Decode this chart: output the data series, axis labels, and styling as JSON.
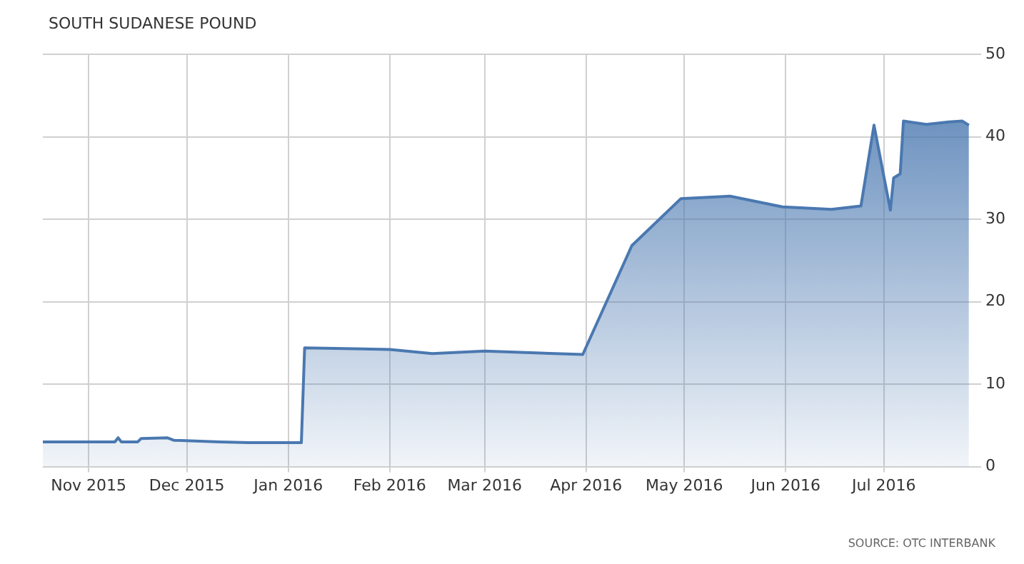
{
  "chart_data": {
    "type": "area",
    "title": "SOUTH SUDANESE POUND",
    "annotations": [
      "SOURCE: OTC INTERBANK"
    ],
    "x": [
      "2015-10-18",
      "2015-11-09",
      "2015-11-10",
      "2015-11-11",
      "2015-11-16",
      "2015-11-17",
      "2015-11-25",
      "2015-11-27",
      "2015-12-11",
      "2015-12-20",
      "2016-01-05",
      "2016-01-06",
      "2016-02-01",
      "2016-02-14",
      "2016-03-01",
      "2016-03-31",
      "2016-04-15",
      "2016-04-30",
      "2016-05-15",
      "2016-05-31",
      "2016-06-15",
      "2016-06-24",
      "2016-06-28",
      "2016-07-03",
      "2016-07-04",
      "2016-07-06",
      "2016-07-07",
      "2016-07-14",
      "2016-07-21",
      "2016-07-25",
      "2016-07-27"
    ],
    "series": [
      {
        "color": "#4a78b0",
        "values": [
          3.0,
          3.0,
          3.5,
          3.0,
          3.0,
          3.4,
          3.5,
          3.2,
          3.0,
          2.9,
          2.9,
          14.4,
          14.2,
          13.7,
          14.0,
          13.6,
          26.8,
          32.5,
          32.8,
          31.5,
          31.2,
          31.6,
          41.4,
          31.1,
          35.0,
          35.5,
          41.9,
          41.5,
          41.8,
          41.9,
          41.4
        ]
      }
    ],
    "xlim": [
      "2015-10-18",
      "2016-07-29"
    ],
    "xticks": [
      {
        "value": "2015-11-01",
        "label": "Nov 2015"
      },
      {
        "value": "2015-12-01",
        "label": "Dec 2015"
      },
      {
        "value": "2016-01-01",
        "label": "Jan 2016"
      },
      {
        "value": "2016-02-01",
        "label": "Feb 2016"
      },
      {
        "value": "2016-03-01",
        "label": "Mar 2016"
      },
      {
        "value": "2016-04-01",
        "label": "Apr 2016"
      },
      {
        "value": "2016-05-01",
        "label": "May 2016"
      },
      {
        "value": "2016-06-01",
        "label": "Jun 2016"
      },
      {
        "value": "2016-07-01",
        "label": "Jul 2016"
      }
    ],
    "ylim": [
      0,
      50
    ],
    "yticks": [
      0,
      10,
      20,
      30,
      40,
      50
    ],
    "grid": true,
    "legend": false
  }
}
